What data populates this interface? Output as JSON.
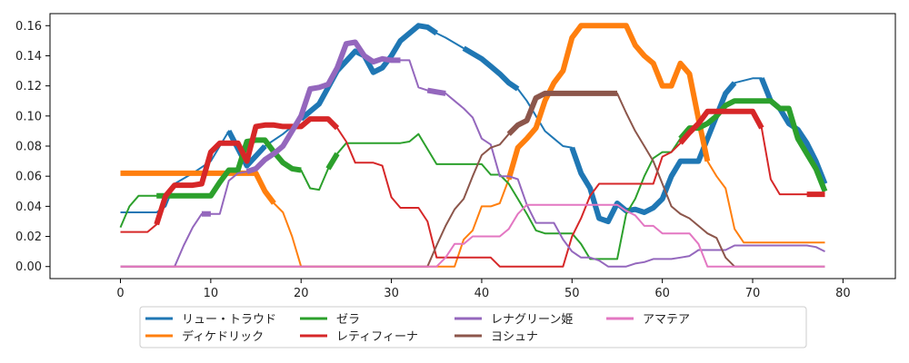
{
  "chart_data": {
    "type": "line",
    "title": "",
    "xlabel": "",
    "ylabel": "",
    "xlim": [
      -7.8,
      85.8
    ],
    "ylim": [
      -0.008,
      0.168
    ],
    "xticks": [
      0,
      10,
      20,
      30,
      40,
      50,
      60,
      70,
      80
    ],
    "yticks": [
      0.0,
      0.02,
      0.04,
      0.06,
      0.08,
      0.1,
      0.12,
      0.14,
      0.16
    ],
    "xtick_labels": [
      "0",
      "10",
      "20",
      "30",
      "40",
      "50",
      "60",
      "70",
      "80"
    ],
    "ytick_labels": [
      "0.00",
      "0.02",
      "0.04",
      "0.06",
      "0.08",
      "0.10",
      "0.12",
      "0.14",
      "0.16"
    ],
    "grid": false,
    "legend_position": "bottom-center",
    "series": [
      {
        "name": "リュー・トラウド",
        "color": "#1f77b4",
        "x": [
          0,
          4,
          5,
          6,
          8,
          10,
          12,
          14,
          16,
          18,
          20,
          22,
          24,
          26,
          27,
          28,
          29,
          30,
          31,
          33,
          34,
          35,
          36,
          38,
          40,
          41,
          42,
          43,
          44,
          45,
          46,
          47,
          48,
          49,
          50,
          51,
          52,
          53,
          54,
          55,
          56,
          57,
          58,
          59,
          60,
          61,
          62,
          63,
          64,
          65,
          66,
          67,
          68,
          70,
          71,
          72,
          73,
          74,
          75,
          76,
          77,
          78
        ],
        "y": [
          0.036,
          0.036,
          0.04,
          0.055,
          0.062,
          0.07,
          0.09,
          0.067,
          0.08,
          0.088,
          0.098,
          0.108,
          0.13,
          0.143,
          0.14,
          0.129,
          0.132,
          0.14,
          0.15,
          0.16,
          0.159,
          0.155,
          0.152,
          0.145,
          0.138,
          0.133,
          0.128,
          0.122,
          0.118,
          0.11,
          0.1,
          0.09,
          0.085,
          0.08,
          0.079,
          0.062,
          0.052,
          0.032,
          0.03,
          0.042,
          0.037,
          0.038,
          0.036,
          0.039,
          0.045,
          0.06,
          0.07,
          0.07,
          0.07,
          0.085,
          0.1,
          0.115,
          0.122,
          0.125,
          0.125,
          0.11,
          0.105,
          0.095,
          0.091,
          0.082,
          0.07,
          0.055
        ],
        "thick_segments": [
          [
            0,
            3
          ],
          [
            8,
            9
          ],
          [
            12,
            16
          ],
          [
            17,
            19
          ],
          [
            20,
            35
          ],
          [
            37,
            44
          ],
          [
            50,
            68
          ],
          [
            71,
            78
          ]
        ]
      },
      {
        "name": "ディケドリック",
        "color": "#ff7f0e",
        "x": [
          0,
          15,
          16,
          17,
          18,
          19,
          20,
          21,
          22,
          23,
          24,
          25,
          26,
          27,
          28,
          29,
          30,
          31,
          32,
          33,
          34,
          35,
          36,
          37,
          38,
          39,
          40,
          41,
          42,
          43,
          44,
          45,
          46,
          47,
          48,
          49,
          50,
          51,
          52,
          53,
          54,
          55,
          56,
          57,
          58,
          59,
          60,
          61,
          62,
          63,
          64,
          65,
          66,
          67,
          68,
          69,
          70,
          71,
          72,
          73,
          74,
          75,
          76,
          77,
          78
        ],
        "y": [
          0.062,
          0.062,
          0.05,
          0.042,
          0.036,
          0.02,
          0.0,
          0.0,
          0.0,
          0.0,
          0.0,
          0.0,
          0.0,
          0.0,
          0.0,
          0.0,
          0.0,
          0.0,
          0.0,
          0.0,
          0.0,
          0.0,
          0.0,
          0.0,
          0.018,
          0.024,
          0.04,
          0.04,
          0.042,
          0.058,
          0.079,
          0.085,
          0.092,
          0.11,
          0.122,
          0.13,
          0.152,
          0.16,
          0.16,
          0.16,
          0.16,
          0.16,
          0.16,
          0.147,
          0.14,
          0.135,
          0.12,
          0.12,
          0.135,
          0.128,
          0.098,
          0.07,
          0.06,
          0.052,
          0.025,
          0.016,
          0.016,
          0.016,
          0.016,
          0.016,
          0.016,
          0.016,
          0.016,
          0.016,
          0.016
        ],
        "thick_segments": [
          [
            0,
            17
          ],
          [
            43,
            65
          ]
        ]
      },
      {
        "name": "ゼラ",
        "color": "#2ca02c",
        "x": [
          0,
          1,
          2,
          3,
          4,
          5,
          6,
          7,
          8,
          9,
          10,
          11,
          12,
          13,
          14,
          15,
          16,
          17,
          18,
          19,
          20,
          21,
          22,
          23,
          24,
          25,
          26,
          27,
          28,
          29,
          30,
          31,
          32,
          33,
          34,
          35,
          36,
          37,
          38,
          39,
          40,
          41,
          42,
          43,
          44,
          45,
          46,
          47,
          48,
          49,
          50,
          51,
          52,
          53,
          54,
          55,
          56,
          57,
          58,
          59,
          60,
          61,
          62,
          63,
          64,
          65,
          66,
          67,
          68,
          69,
          70,
          71,
          72,
          73,
          74,
          75,
          76,
          77,
          78
        ],
        "y": [
          0.026,
          0.04,
          0.047,
          0.047,
          0.047,
          0.047,
          0.047,
          0.047,
          0.047,
          0.047,
          0.047,
          0.056,
          0.064,
          0.064,
          0.083,
          0.084,
          0.084,
          0.076,
          0.069,
          0.065,
          0.064,
          0.052,
          0.051,
          0.065,
          0.075,
          0.082,
          0.082,
          0.082,
          0.082,
          0.082,
          0.082,
          0.082,
          0.083,
          0.088,
          0.078,
          0.068,
          0.068,
          0.068,
          0.068,
          0.068,
          0.068,
          0.061,
          0.061,
          0.055,
          0.045,
          0.035,
          0.024,
          0.022,
          0.022,
          0.022,
          0.022,
          0.015,
          0.005,
          0.005,
          0.005,
          0.005,
          0.035,
          0.045,
          0.06,
          0.072,
          0.076,
          0.076,
          0.085,
          0.092,
          0.092,
          0.095,
          0.1,
          0.107,
          0.11,
          0.11,
          0.11,
          0.11,
          0.11,
          0.105,
          0.105,
          0.085,
          0.075,
          0.065,
          0.05
        ],
        "thick_segments": [
          [
            4,
            20
          ],
          [
            23,
            24
          ],
          [
            62,
            78
          ]
        ]
      },
      {
        "name": "レティフィーナ",
        "color": "#d62728",
        "x": [
          0,
          1,
          2,
          3,
          4,
          5,
          6,
          7,
          8,
          9,
          10,
          11,
          12,
          13,
          14,
          15,
          16,
          17,
          18,
          19,
          20,
          21,
          22,
          23,
          24,
          25,
          26,
          27,
          28,
          29,
          30,
          31,
          32,
          33,
          34,
          35,
          36,
          37,
          38,
          39,
          40,
          41,
          42,
          43,
          44,
          45,
          46,
          47,
          48,
          49,
          50,
          51,
          52,
          53,
          54,
          55,
          56,
          57,
          58,
          59,
          60,
          61,
          62,
          63,
          64,
          65,
          66,
          67,
          68,
          69,
          70,
          71,
          72,
          73,
          74,
          75,
          76,
          77,
          78
        ],
        "y": [
          0.023,
          0.023,
          0.023,
          0.023,
          0.028,
          0.047,
          0.054,
          0.054,
          0.054,
          0.055,
          0.076,
          0.082,
          0.082,
          0.082,
          0.07,
          0.093,
          0.094,
          0.094,
          0.093,
          0.093,
          0.093,
          0.098,
          0.098,
          0.098,
          0.092,
          0.083,
          0.069,
          0.069,
          0.069,
          0.067,
          0.046,
          0.039,
          0.039,
          0.039,
          0.03,
          0.006,
          0.006,
          0.006,
          0.006,
          0.006,
          0.006,
          0.006,
          0.0,
          0.0,
          0.0,
          0.0,
          0.0,
          0.0,
          0.0,
          0.0,
          0.02,
          0.032,
          0.047,
          0.055,
          0.055,
          0.055,
          0.055,
          0.055,
          0.055,
          0.055,
          0.073,
          0.076,
          0.082,
          0.089,
          0.095,
          0.103,
          0.103,
          0.103,
          0.103,
          0.103,
          0.103,
          0.092,
          0.058,
          0.048,
          0.048,
          0.048,
          0.048,
          0.048,
          0.048
        ],
        "thick_segments": [
          [
            4,
            24
          ],
          [
            62,
            71
          ],
          [
            76,
            78
          ]
        ]
      },
      {
        "name": "レナグリーン姫",
        "color": "#9467bd",
        "x": [
          0,
          6,
          7,
          8,
          9,
          10,
          11,
          12,
          13,
          14,
          15,
          16,
          17,
          18,
          19,
          20,
          21,
          22,
          23,
          24,
          25,
          26,
          27,
          28,
          29,
          30,
          31,
          32,
          33,
          34,
          35,
          36,
          37,
          38,
          39,
          40,
          41,
          42,
          43,
          44,
          45,
          46,
          47,
          48,
          49,
          50,
          51,
          52,
          53,
          54,
          55,
          56,
          57,
          58,
          59,
          60,
          61,
          62,
          63,
          64,
          65,
          66,
          67,
          68,
          69,
          70,
          71,
          72,
          73,
          74,
          75,
          76,
          77,
          78
        ],
        "y": [
          0.0,
          0.0,
          0.014,
          0.026,
          0.035,
          0.035,
          0.035,
          0.057,
          0.062,
          0.063,
          0.065,
          0.071,
          0.075,
          0.08,
          0.09,
          0.1,
          0.118,
          0.119,
          0.121,
          0.132,
          0.148,
          0.149,
          0.14,
          0.136,
          0.138,
          0.137,
          0.137,
          0.137,
          0.119,
          0.117,
          0.116,
          0.115,
          0.11,
          0.105,
          0.099,
          0.085,
          0.081,
          0.06,
          0.06,
          0.058,
          0.041,
          0.029,
          0.029,
          0.029,
          0.018,
          0.01,
          0.006,
          0.006,
          0.004,
          0.0,
          0.0,
          0.0,
          0.002,
          0.003,
          0.005,
          0.005,
          0.005,
          0.006,
          0.007,
          0.011,
          0.011,
          0.011,
          0.011,
          0.014,
          0.014,
          0.014,
          0.014,
          0.014,
          0.014,
          0.014,
          0.014,
          0.014,
          0.013,
          0.01
        ],
        "thick_segments": [
          [
            9,
            10
          ],
          [
            14,
            31
          ],
          [
            34,
            36
          ]
        ]
      },
      {
        "name": "ヨシュナ",
        "color": "#8c564b",
        "x": [
          0,
          34,
          35,
          36,
          37,
          38,
          39,
          40,
          41,
          42,
          43,
          44,
          45,
          46,
          47,
          48,
          49,
          50,
          51,
          52,
          53,
          54,
          55,
          56,
          57,
          58,
          59,
          60,
          61,
          62,
          63,
          64,
          65,
          66,
          67,
          68,
          69,
          70,
          71,
          72,
          73,
          74,
          75,
          76,
          77,
          78
        ],
        "y": [
          0.0,
          0.0,
          0.014,
          0.027,
          0.038,
          0.045,
          0.06,
          0.074,
          0.079,
          0.081,
          0.088,
          0.094,
          0.097,
          0.112,
          0.115,
          0.115,
          0.115,
          0.115,
          0.115,
          0.115,
          0.115,
          0.115,
          0.115,
          0.102,
          0.09,
          0.08,
          0.07,
          0.055,
          0.04,
          0.035,
          0.032,
          0.027,
          0.022,
          0.019,
          0.006,
          0.0,
          0.0,
          0.0,
          0.0,
          0.0,
          0.0,
          0.0,
          0.0,
          0.0,
          0.0,
          0.0
        ],
        "thick_segments": [
          [
            43,
            55
          ]
        ]
      },
      {
        "name": "アマテア",
        "color": "#e377c2",
        "x": [
          0,
          35,
          36,
          37,
          38,
          39,
          40,
          41,
          42,
          43,
          44,
          45,
          46,
          47,
          48,
          49,
          50,
          51,
          52,
          53,
          54,
          55,
          56,
          57,
          58,
          59,
          60,
          61,
          62,
          63,
          64,
          65,
          66,
          67,
          68,
          69,
          70,
          71,
          72,
          73,
          74,
          75,
          76,
          77,
          78
        ],
        "y": [
          0.0,
          0.0,
          0.006,
          0.015,
          0.015,
          0.02,
          0.02,
          0.02,
          0.02,
          0.025,
          0.035,
          0.041,
          0.041,
          0.041,
          0.041,
          0.041,
          0.041,
          0.041,
          0.041,
          0.041,
          0.041,
          0.041,
          0.037,
          0.034,
          0.027,
          0.027,
          0.022,
          0.022,
          0.022,
          0.022,
          0.015,
          0.0,
          0.0,
          0.0,
          0.0,
          0.0,
          0.0,
          0.0,
          0.0,
          0.0,
          0.0,
          0.0,
          0.0,
          0.0,
          0.0
        ],
        "thick_segments": []
      }
    ]
  }
}
